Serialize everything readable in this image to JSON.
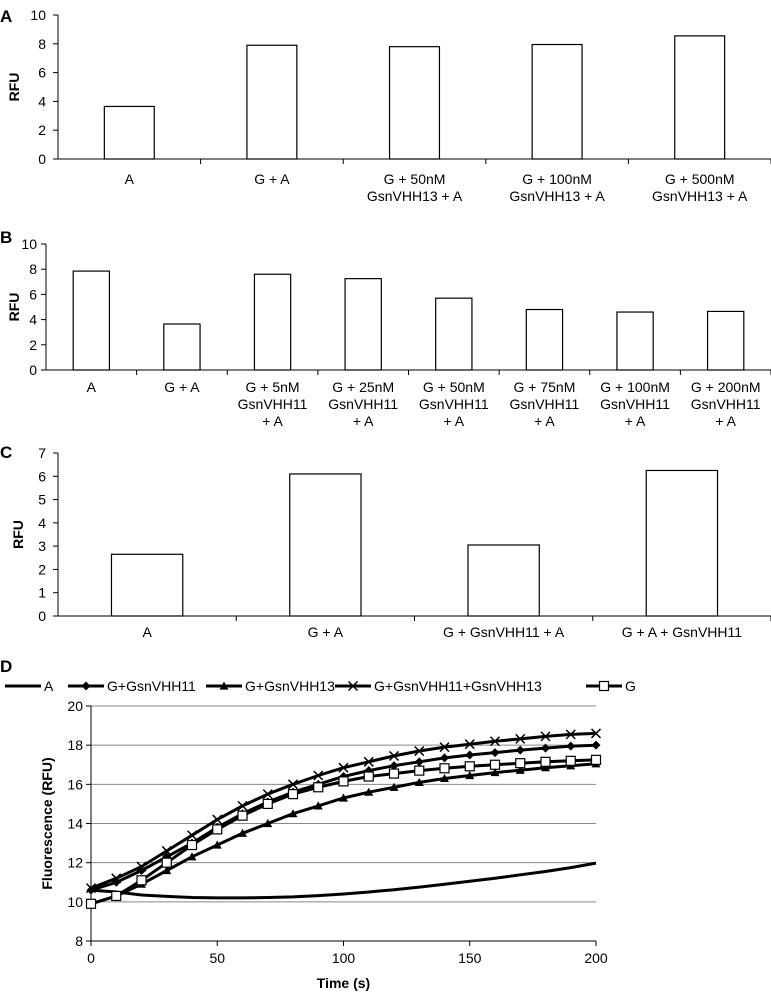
{
  "figure": {
    "panel_letters": [
      "A",
      "B",
      "C",
      "D"
    ]
  },
  "chart_data": [
    {
      "panel": "A",
      "type": "bar",
      "ylabel": "RFU",
      "ylim": [
        0,
        10
      ],
      "yticks": [
        "0",
        "2",
        "4",
        "6",
        "8",
        "10"
      ],
      "categories": [
        [
          "A"
        ],
        [
          "G + A"
        ],
        [
          "G + 50nM",
          "GsnVHH13 + A"
        ],
        [
          "G + 100nM",
          "GsnVHH13 + A"
        ],
        [
          "G + 500nM",
          "GsnVHH13 + A"
        ]
      ],
      "values": [
        3.65,
        7.9,
        7.8,
        7.95,
        8.55
      ]
    },
    {
      "panel": "B",
      "type": "bar",
      "ylabel": "RFU",
      "ylim": [
        0,
        10
      ],
      "yticks": [
        "0",
        "2",
        "4",
        "6",
        "8",
        "10"
      ],
      "categories": [
        [
          "A"
        ],
        [
          "G + A"
        ],
        [
          "G + 5nM",
          "GsnVHH11",
          "+ A"
        ],
        [
          "G + 25nM",
          "GsnVHH11",
          "+ A"
        ],
        [
          "G + 50nM",
          "GsnVHH11",
          "+ A"
        ],
        [
          "G + 75nM",
          "GsnVHH11",
          "+ A"
        ],
        [
          "G + 100nM",
          "GsnVHH11",
          "+ A"
        ],
        [
          "G + 200nM",
          "GsnVHH11",
          "+ A"
        ]
      ],
      "values": [
        7.85,
        3.65,
        7.6,
        7.25,
        5.7,
        4.8,
        4.6,
        4.65
      ]
    },
    {
      "panel": "C",
      "type": "bar",
      "ylabel": "RFU",
      "ylim": [
        0,
        7
      ],
      "yticks": [
        "0",
        "1",
        "2",
        "3",
        "4",
        "5",
        "6",
        "7"
      ],
      "categories": [
        [
          "A"
        ],
        [
          "G + A"
        ],
        [
          "G + GsnVHH11 + A"
        ],
        [
          "G + A + GsnVHH11"
        ]
      ],
      "values": [
        2.65,
        6.1,
        3.05,
        6.25
      ]
    },
    {
      "panel": "D",
      "type": "line",
      "xlabel": "Time (s)",
      "ylabel": "Fluorescence (RFU)",
      "xlim": [
        0,
        200
      ],
      "ylim": [
        8,
        20
      ],
      "xticks": [
        "0",
        "50",
        "100",
        "150",
        "200"
      ],
      "yticks": [
        "8",
        "10",
        "12",
        "14",
        "16",
        "18",
        "20"
      ],
      "grid": true,
      "legend": "top",
      "series": [
        {
          "name": "A",
          "marker": "none",
          "x": [
            0,
            10,
            20,
            30,
            40,
            50,
            60,
            70,
            80,
            90,
            100,
            110,
            120,
            130,
            140,
            150,
            160,
            170,
            180,
            190,
            200
          ],
          "y": [
            10.6,
            10.5,
            10.35,
            10.28,
            10.22,
            10.2,
            10.2,
            10.22,
            10.25,
            10.32,
            10.4,
            10.5,
            10.62,
            10.75,
            10.9,
            11.05,
            11.2,
            11.38,
            11.55,
            11.75,
            11.98
          ]
        },
        {
          "name": "G+GsnVHH11",
          "marker": "diamond",
          "x": [
            0,
            10,
            20,
            30,
            40,
            50,
            60,
            70,
            80,
            90,
            100,
            110,
            120,
            130,
            140,
            150,
            160,
            170,
            180,
            190,
            200
          ],
          "y": [
            10.6,
            11.0,
            11.6,
            12.3,
            13.0,
            13.8,
            14.5,
            15.1,
            15.6,
            16.0,
            16.4,
            16.7,
            16.95,
            17.15,
            17.35,
            17.5,
            17.62,
            17.75,
            17.85,
            17.95,
            18.0
          ]
        },
        {
          "name": "G+GsnVHH13",
          "marker": "triangle",
          "x": [
            0,
            10,
            20,
            30,
            40,
            50,
            60,
            70,
            80,
            90,
            100,
            110,
            120,
            130,
            140,
            150,
            160,
            170,
            180,
            190,
            200
          ],
          "y": [
            9.9,
            10.3,
            10.9,
            11.6,
            12.3,
            12.9,
            13.5,
            14.0,
            14.5,
            14.9,
            15.3,
            15.6,
            15.85,
            16.1,
            16.3,
            16.45,
            16.6,
            16.72,
            16.85,
            16.95,
            17.05
          ]
        },
        {
          "name": "G+GsnVHH11+GsnVHH13",
          "marker": "x",
          "x": [
            0,
            10,
            20,
            30,
            40,
            50,
            60,
            70,
            80,
            90,
            100,
            110,
            120,
            130,
            140,
            150,
            160,
            170,
            180,
            190,
            200
          ],
          "y": [
            10.7,
            11.2,
            11.8,
            12.6,
            13.4,
            14.2,
            14.9,
            15.5,
            16.0,
            16.45,
            16.85,
            17.15,
            17.45,
            17.7,
            17.9,
            18.05,
            18.2,
            18.32,
            18.45,
            18.55,
            18.6
          ]
        },
        {
          "name": "G",
          "marker": "square",
          "x": [
            0,
            10,
            20,
            30,
            40,
            50,
            60,
            70,
            80,
            90,
            100,
            110,
            120,
            130,
            140,
            150,
            160,
            170,
            180,
            190,
            200
          ],
          "y": [
            9.9,
            10.3,
            11.1,
            12.0,
            12.9,
            13.7,
            14.4,
            15.0,
            15.5,
            15.85,
            16.15,
            16.4,
            16.55,
            16.7,
            16.82,
            16.92,
            17.0,
            17.08,
            17.15,
            17.2,
            17.25
          ]
        }
      ]
    }
  ]
}
